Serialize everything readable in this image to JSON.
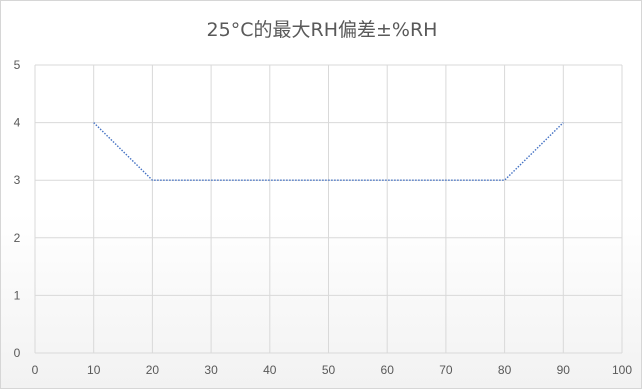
{
  "chart_data": {
    "type": "line",
    "title": "25°C的最大RH偏差±%RH",
    "xlabel": "",
    "ylabel": "",
    "xlim": [
      0,
      100
    ],
    "ylim": [
      0,
      5
    ],
    "x_ticks": [
      0,
      10,
      20,
      30,
      40,
      50,
      60,
      70,
      80,
      90,
      100
    ],
    "y_ticks": [
      0,
      1,
      2,
      3,
      4,
      5
    ],
    "grid": true,
    "legend": "none",
    "series": [
      {
        "x": [
          10,
          20,
          30,
          40,
          50,
          60,
          70,
          80,
          90
        ],
        "values": [
          4,
          3,
          3,
          3,
          3,
          3,
          3,
          3,
          4
        ],
        "color": "#4472c4",
        "line_style": "dotted"
      }
    ]
  }
}
